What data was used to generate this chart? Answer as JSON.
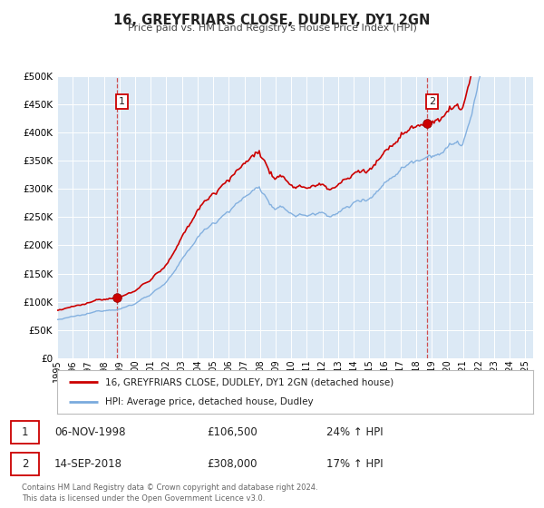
{
  "title": "16, GREYFRIARS CLOSE, DUDLEY, DY1 2GN",
  "subtitle": "Price paid vs. HM Land Registry's House Price Index (HPI)",
  "legend_label1": "16, GREYFRIARS CLOSE, DUDLEY, DY1 2GN (detached house)",
  "legend_label2": "HPI: Average price, detached house, Dudley",
  "annotation1_date": "06-NOV-1998",
  "annotation1_price": "£106,500",
  "annotation1_hpi": "24% ↑ HPI",
  "annotation1_year": 1998.85,
  "annotation1_value": 106500,
  "annotation2_date": "14-SEP-2018",
  "annotation2_price": "£308,000",
  "annotation2_hpi": "17% ↑ HPI",
  "annotation2_year": 2018.71,
  "annotation2_value": 308000,
  "red_color": "#cc0000",
  "blue_color": "#7aaadd",
  "bg_color": "#dce9f5",
  "grid_color": "#ffffff",
  "vline_color": "#cc3333",
  "footer_text": "Contains HM Land Registry data © Crown copyright and database right 2024.\nThis data is licensed under the Open Government Licence v3.0.",
  "ylim": [
    0,
    500000
  ],
  "yticks": [
    0,
    50000,
    100000,
    150000,
    200000,
    250000,
    300000,
    350000,
    400000,
    450000,
    500000
  ],
  "xlim_start": 1995.0,
  "xlim_end": 2025.5,
  "xticks": [
    1995,
    1996,
    1997,
    1998,
    1999,
    2000,
    2001,
    2002,
    2003,
    2004,
    2005,
    2006,
    2007,
    2008,
    2009,
    2010,
    2011,
    2012,
    2013,
    2014,
    2015,
    2016,
    2017,
    2018,
    2019,
    2020,
    2021,
    2022,
    2023,
    2024,
    2025
  ]
}
